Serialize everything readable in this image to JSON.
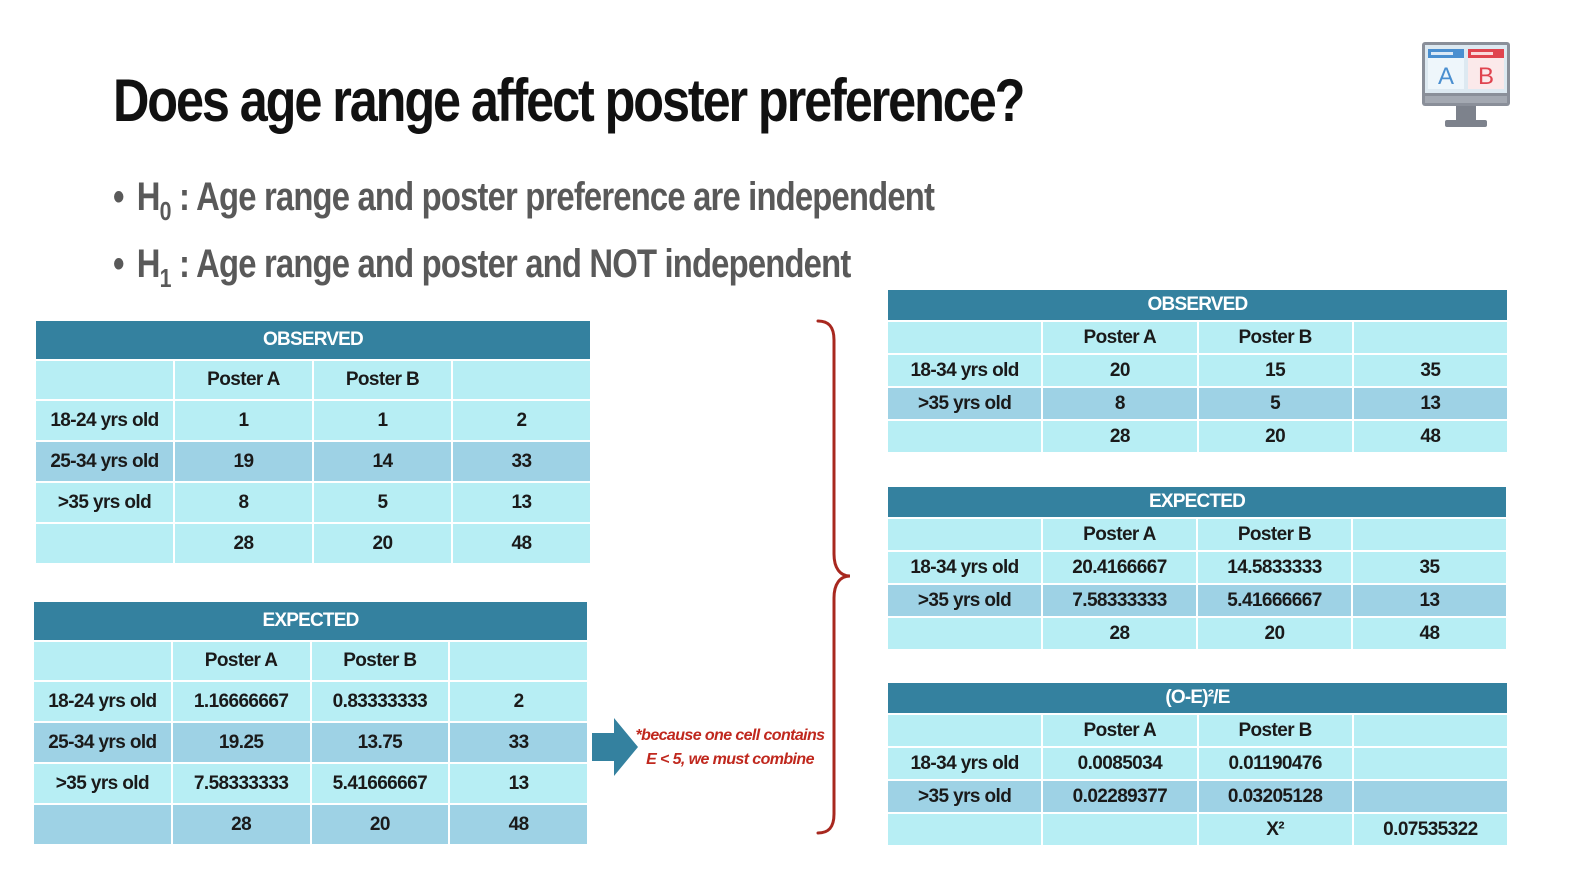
{
  "title": "Does age range affect poster preference?",
  "hypotheses": {
    "h0": {
      "prefix": "H",
      "sub": "0",
      "text": " : Age range and poster preference are independent"
    },
    "h1": {
      "prefix": "H",
      "sub": "1",
      "text": " : Age range and poster and NOT independent"
    }
  },
  "left_observed": {
    "title": "OBSERVED",
    "columns": [
      "",
      "Poster A",
      "Poster B",
      ""
    ],
    "rows": [
      [
        "18-24 yrs old",
        "1",
        "1",
        "2"
      ],
      [
        "25-34 yrs old",
        "19",
        "14",
        "33"
      ],
      [
        ">35 yrs old",
        "8",
        "5",
        "13"
      ],
      [
        "",
        "28",
        "20",
        "48"
      ]
    ]
  },
  "left_expected": {
    "title": "EXPECTED",
    "columns": [
      "",
      "Poster A",
      "Poster B",
      ""
    ],
    "rows": [
      [
        "18-24 yrs old",
        "1.16666667",
        "0.83333333",
        "2"
      ],
      [
        "25-34 yrs old",
        "19.25",
        "13.75",
        "33"
      ],
      [
        ">35 yrs old",
        "7.58333333",
        "5.41666667",
        "13"
      ],
      [
        "",
        "28",
        "20",
        "48"
      ]
    ]
  },
  "note": {
    "line1": "*because one cell contains",
    "line2": "E < 5, we must combine"
  },
  "right_observed": {
    "title": "OBSERVED",
    "columns": [
      "",
      "Poster A",
      "Poster B",
      ""
    ],
    "rows": [
      [
        "18-34 yrs old",
        "20",
        "15",
        "35"
      ],
      [
        ">35 yrs old",
        "8",
        "5",
        "13"
      ],
      [
        "",
        "28",
        "20",
        "48"
      ]
    ]
  },
  "right_expected": {
    "title": "EXPECTED",
    "columns": [
      "",
      "Poster A",
      "Poster B",
      ""
    ],
    "rows": [
      [
        "18-34 yrs old",
        "20.4166667",
        "14.5833333",
        "35"
      ],
      [
        ">35 yrs old",
        "7.58333333",
        "5.41666667",
        "13"
      ],
      [
        "",
        "28",
        "20",
        "48"
      ]
    ]
  },
  "right_chi": {
    "title": "(O-E)²/E",
    "columns": [
      "",
      "Poster A",
      "Poster B",
      ""
    ],
    "rows": [
      [
        "18-34 yrs old",
        "0.0085034",
        "0.01190476",
        ""
      ],
      [
        ">35 yrs old",
        "0.02289377",
        "0.03205128",
        ""
      ],
      [
        "",
        "",
        "X²",
        "0.07535322"
      ]
    ]
  },
  "logo": {
    "icon": "ab-test-monitor-icon",
    "label_a": "A",
    "label_b": "B",
    "colors": {
      "frame": "#8a8f99",
      "screen": "#dde9f1",
      "a_panel": "#4a8fd0",
      "b_panel": "#e0444f"
    }
  }
}
